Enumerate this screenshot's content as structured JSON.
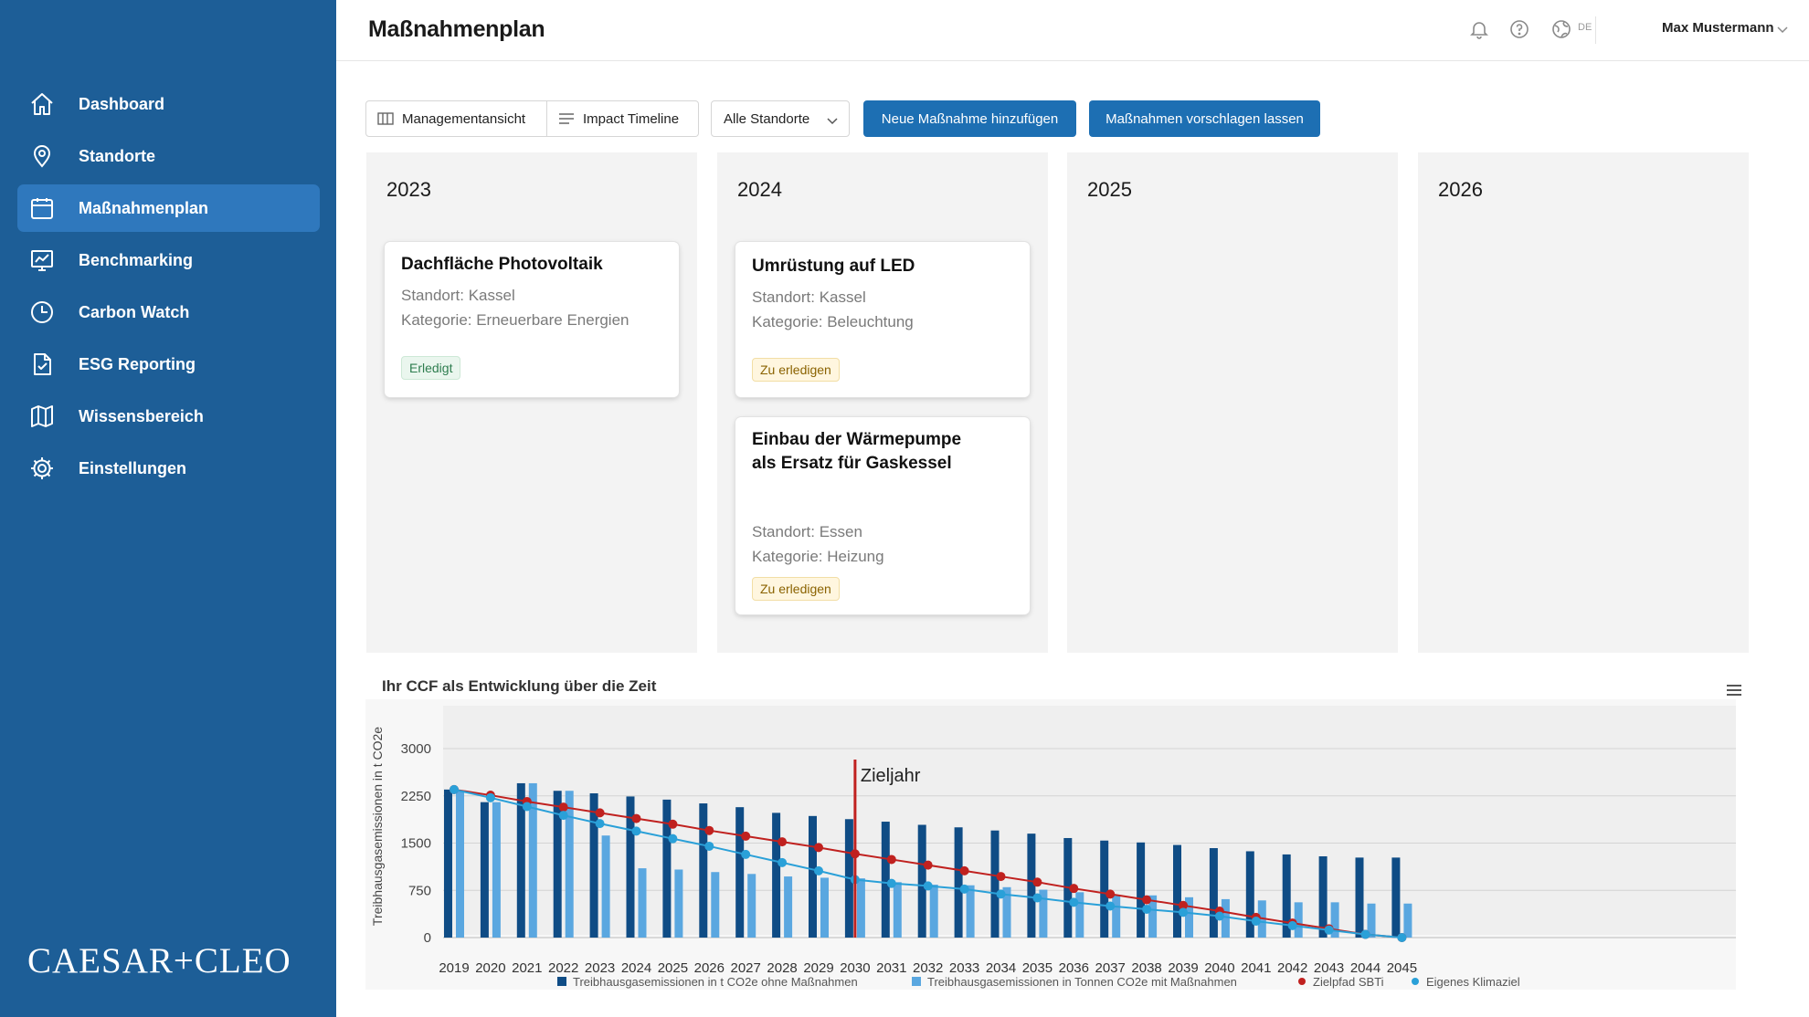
{
  "sidebar": {
    "items": [
      {
        "label": "Dashboard",
        "icon": "home-icon"
      },
      {
        "label": "Standorte",
        "icon": "location-pin-icon"
      },
      {
        "label": "Maßnahmenplan",
        "icon": "calendar-icon",
        "active": true
      },
      {
        "label": "Benchmarking",
        "icon": "chart-board-icon"
      },
      {
        "label": "Carbon Watch",
        "icon": "clock-icon"
      },
      {
        "label": "ESG Reporting",
        "icon": "document-check-icon"
      },
      {
        "label": "Wissensbereich",
        "icon": "map-book-icon"
      },
      {
        "label": "Einstellungen",
        "icon": "gear-icon"
      }
    ],
    "logo": "CAESAR+CLEO",
    "bg_color": "#1d5e97",
    "active_color": "#2f78bd"
  },
  "header": {
    "title": "Maßnahmenplan",
    "language": "DE",
    "user_name": "Max Mustermann"
  },
  "toolbar": {
    "view_management": "Managementansicht",
    "view_timeline": "Impact Timeline",
    "location_select": "Alle Standorte",
    "add_button": "Neue Maßnahme hinzufügen",
    "suggest_button": "Maßnahmen vorschlagen lassen",
    "primary_color": "#1d6fb3"
  },
  "board": {
    "columns": [
      {
        "year": "2023",
        "cards": [
          {
            "title": "Dachfläche Photovoltaik",
            "location": "Standort: Kassel",
            "category": "Kategorie: Erneuerbare  Energien",
            "status": "Erledigt",
            "status_kind": "done"
          }
        ]
      },
      {
        "year": "2024",
        "cards": [
          {
            "title": "Umrüstung auf LED",
            "location": "Standort: Kassel",
            "category": "Kategorie: Beleuchtung",
            "status": "Zu erledigen",
            "status_kind": "todo"
          },
          {
            "title": "Einbau der Wärmepumpe als Ersatz für Gaskessel",
            "location": "Standort: Essen",
            "category": "Kategorie: Heizung",
            "status": "Zu erledigen",
            "status_kind": "todo"
          }
        ]
      },
      {
        "year": "2025",
        "cards": []
      },
      {
        "year": "2026",
        "cards": []
      }
    ]
  },
  "chart_data": {
    "type": "bar",
    "title": "Ihr CCF als Entwicklung über die Zeit",
    "ylabel": "Treibhausgasemissionen in t CO2e",
    "xlabel": "",
    "ylim": [
      0,
      3000
    ],
    "yticks": [
      0,
      750,
      1500,
      2250,
      3000
    ],
    "grid": true,
    "legend_position": "bottom",
    "categories": [
      "2019",
      "2020",
      "2021",
      "2022",
      "2023",
      "2024",
      "2025",
      "2026",
      "2027",
      "2028",
      "2029",
      "2030",
      "2031",
      "2032",
      "2033",
      "2034",
      "2035",
      "2036",
      "2037",
      "2038",
      "2039",
      "2040",
      "2041",
      "2042",
      "2043",
      "2044",
      "2045"
    ],
    "series": [
      {
        "name": "Treibhausgasemissionen in t CO2e ohne Maßnahmen",
        "kind": "bar",
        "color": "#0f4c85",
        "values": [
          2350,
          2150,
          2450,
          2330,
          2290,
          2240,
          2190,
          2130,
          2070,
          1980,
          1930,
          1880,
          1840,
          1790,
          1750,
          1700,
          1650,
          1580,
          1540,
          1510,
          1470,
          1420,
          1370,
          1320,
          1290,
          1270,
          1270
        ]
      },
      {
        "name": "Treibhausgasemissionen in Tonnen CO2e mit Maßnahmen",
        "kind": "bar",
        "color": "#5aa7e0",
        "values": [
          2330,
          2150,
          2450,
          2330,
          1620,
          1100,
          1080,
          1040,
          1010,
          970,
          950,
          940,
          880,
          840,
          830,
          800,
          760,
          720,
          680,
          670,
          640,
          610,
          590,
          560,
          560,
          540,
          540
        ]
      },
      {
        "name": "Zielpfad SBTi",
        "kind": "line",
        "color": "#c0211f",
        "values": [
          2350,
          2260,
          2160,
          2070,
          1980,
          1890,
          1800,
          1700,
          1610,
          1520,
          1430,
          1330,
          1240,
          1150,
          1060,
          970,
          880,
          780,
          690,
          600,
          510,
          420,
          320,
          230,
          140,
          50,
          0
        ]
      },
      {
        "name": "Eigenes Klimaziel",
        "kind": "line",
        "color": "#2aa0d8",
        "values": [
          2350,
          2220,
          2080,
          1940,
          1810,
          1690,
          1570,
          1450,
          1320,
          1190,
          1060,
          920,
          860,
          820,
          770,
          690,
          630,
          560,
          500,
          450,
          400,
          340,
          260,
          190,
          120,
          50,
          0
        ]
      }
    ],
    "annotation": {
      "label": "Zieljahr",
      "x": "2030",
      "color": "#c0211f"
    }
  }
}
